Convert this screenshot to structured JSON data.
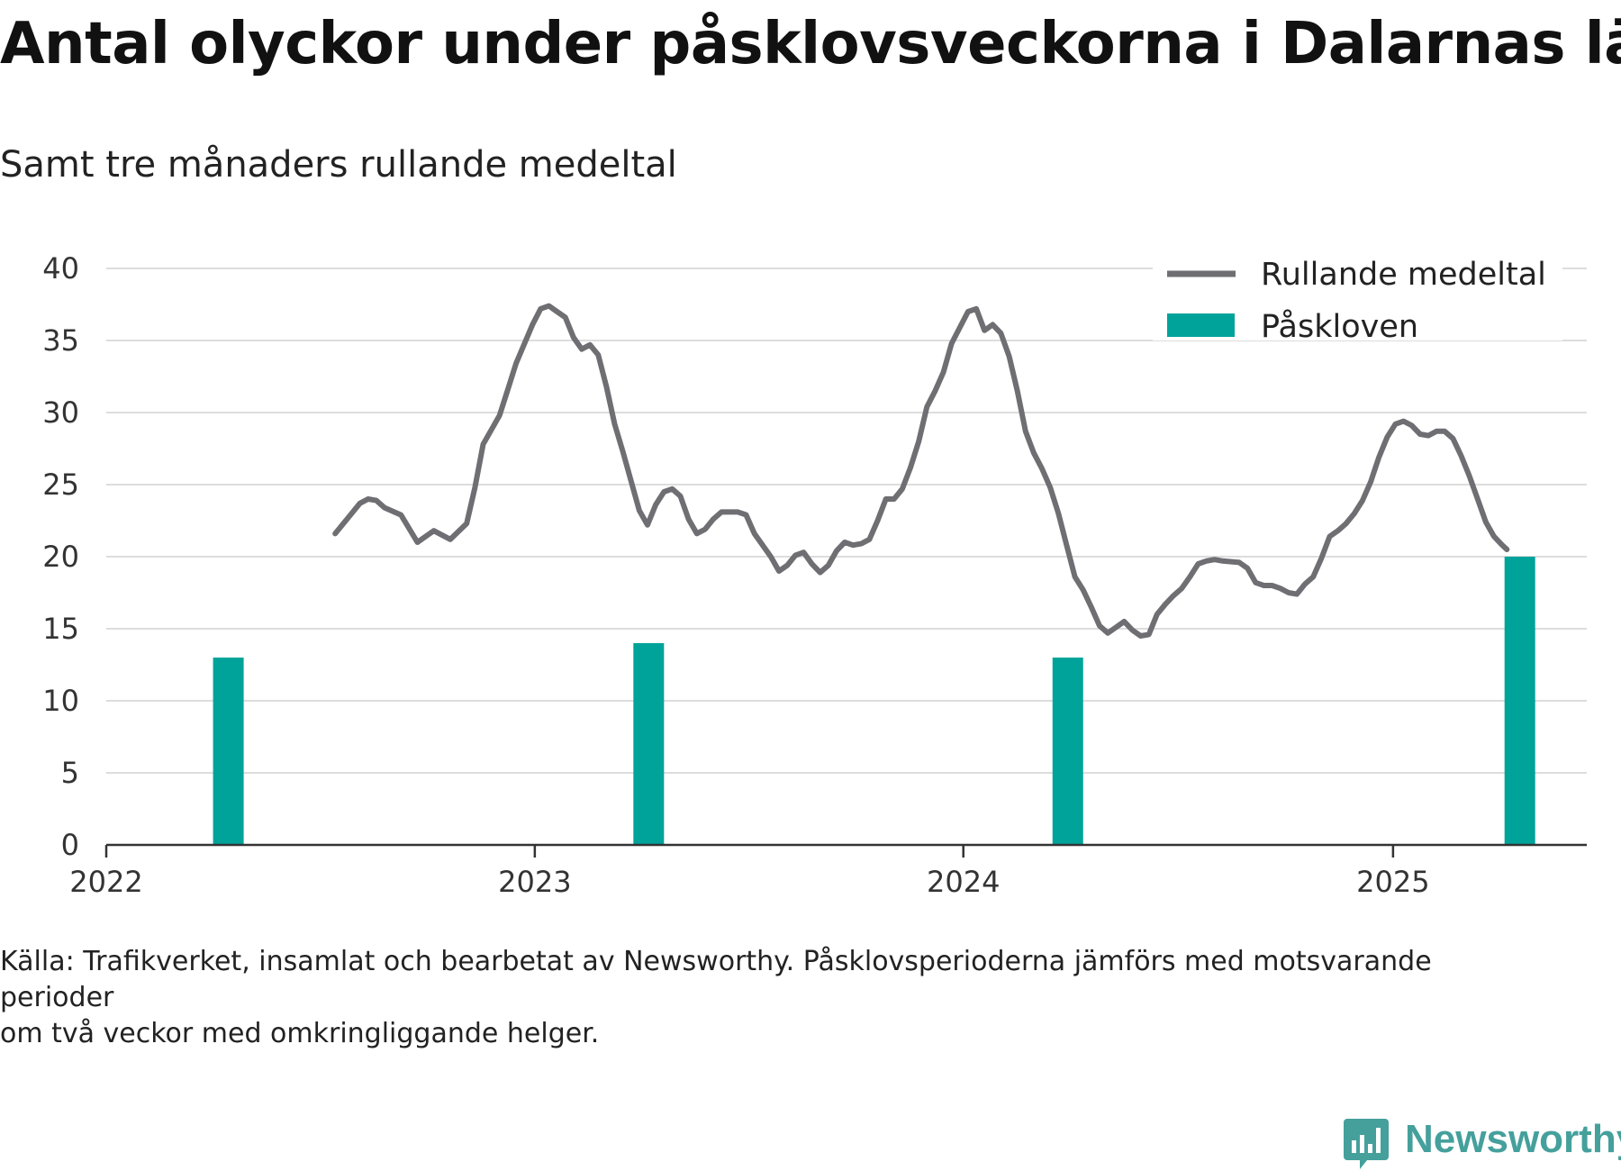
{
  "chart_data": {
    "type": "line+bar",
    "title": "Antal olyckor under påsklovsveckorna i Dalarnas län",
    "subtitle": "Samt tre månaders rullande medeltal",
    "xlabel": "",
    "ylabel": "",
    "x_range": [
      "2022-01-01",
      "2025-06-15"
    ],
    "ylim": [
      0,
      40
    ],
    "y_ticks": [
      0,
      5,
      10,
      15,
      20,
      25,
      30,
      35,
      40
    ],
    "x_ticks": [
      {
        "date": "2022-01-01",
        "label": "2022"
      },
      {
        "date": "2023-01-01",
        "label": "2023"
      },
      {
        "date": "2024-01-01",
        "label": "2024"
      },
      {
        "date": "2025-01-01",
        "label": "2025"
      }
    ],
    "grid": "horizontal",
    "legend_position": "top-right",
    "colors": {
      "line": "#6e6e73",
      "bars": "#00a39a",
      "grid": "#dddddd",
      "axis": "#333333"
    },
    "series": [
      {
        "name": "Rullande medeltal",
        "type": "line",
        "points": [
          [
            "2022-07-15",
            21.6
          ],
          [
            "2022-07-29",
            23.0
          ],
          [
            "2022-08-05",
            23.7
          ],
          [
            "2022-08-12",
            24.0
          ],
          [
            "2022-08-19",
            23.9
          ],
          [
            "2022-08-26",
            23.4
          ],
          [
            "2022-09-09",
            22.9
          ],
          [
            "2022-09-23",
            21.0
          ],
          [
            "2022-10-07",
            21.8
          ],
          [
            "2022-10-21",
            21.2
          ],
          [
            "2022-11-04",
            22.3
          ],
          [
            "2022-11-11",
            24.8
          ],
          [
            "2022-11-18",
            27.8
          ],
          [
            "2022-12-02",
            29.8
          ],
          [
            "2022-12-09",
            31.6
          ],
          [
            "2022-12-16",
            33.4
          ],
          [
            "2022-12-30",
            36.1
          ],
          [
            "2023-01-06",
            37.2
          ],
          [
            "2023-01-13",
            37.4
          ],
          [
            "2023-01-20",
            37.0
          ],
          [
            "2023-01-27",
            36.6
          ],
          [
            "2023-02-03",
            35.2
          ],
          [
            "2023-02-10",
            34.4
          ],
          [
            "2023-02-17",
            34.7
          ],
          [
            "2023-02-24",
            34.0
          ],
          [
            "2023-03-03",
            31.8
          ],
          [
            "2023-03-10",
            29.2
          ],
          [
            "2023-03-17",
            27.3
          ],
          [
            "2023-03-31",
            23.2
          ],
          [
            "2023-04-07",
            22.2
          ],
          [
            "2023-04-14",
            23.6
          ],
          [
            "2023-04-21",
            24.5
          ],
          [
            "2023-04-28",
            24.7
          ],
          [
            "2023-05-05",
            24.2
          ],
          [
            "2023-05-12",
            22.6
          ],
          [
            "2023-05-19",
            21.6
          ],
          [
            "2023-05-26",
            21.9
          ],
          [
            "2023-06-02",
            22.6
          ],
          [
            "2023-06-09",
            23.1
          ],
          [
            "2023-06-23",
            23.1
          ],
          [
            "2023-06-30",
            22.9
          ],
          [
            "2023-07-07",
            21.6
          ],
          [
            "2023-07-21",
            20.0
          ],
          [
            "2023-07-28",
            19.0
          ],
          [
            "2023-08-04",
            19.4
          ],
          [
            "2023-08-11",
            20.1
          ],
          [
            "2023-08-18",
            20.3
          ],
          [
            "2023-08-25",
            19.5
          ],
          [
            "2023-09-01",
            18.9
          ],
          [
            "2023-09-08",
            19.4
          ],
          [
            "2023-09-15",
            20.4
          ],
          [
            "2023-09-22",
            21.0
          ],
          [
            "2023-09-29",
            20.8
          ],
          [
            "2023-10-06",
            20.9
          ],
          [
            "2023-10-13",
            21.2
          ],
          [
            "2023-10-20",
            22.5
          ],
          [
            "2023-10-27",
            24.0
          ],
          [
            "2023-11-03",
            24.0
          ],
          [
            "2023-11-10",
            24.7
          ],
          [
            "2023-11-17",
            26.2
          ],
          [
            "2023-11-24",
            28.0
          ],
          [
            "2023-12-01",
            30.4
          ],
          [
            "2023-12-08",
            31.5
          ],
          [
            "2023-12-15",
            32.8
          ],
          [
            "2023-12-22",
            34.8
          ],
          [
            "2023-12-29",
            35.9
          ],
          [
            "2024-01-05",
            37.0
          ],
          [
            "2024-01-12",
            37.2
          ],
          [
            "2024-01-19",
            35.7
          ],
          [
            "2024-01-26",
            36.1
          ],
          [
            "2024-02-02",
            35.5
          ],
          [
            "2024-02-09",
            33.9
          ],
          [
            "2024-02-16",
            31.5
          ],
          [
            "2024-02-23",
            28.7
          ],
          [
            "2024-03-01",
            27.2
          ],
          [
            "2024-03-08",
            26.1
          ],
          [
            "2024-03-15",
            24.8
          ],
          [
            "2024-03-22",
            23.0
          ],
          [
            "2024-03-29",
            20.8
          ],
          [
            "2024-04-05",
            18.6
          ],
          [
            "2024-04-12",
            17.7
          ],
          [
            "2024-04-19",
            16.5
          ],
          [
            "2024-04-26",
            15.2
          ],
          [
            "2024-05-03",
            14.7
          ],
          [
            "2024-05-10",
            15.1
          ],
          [
            "2024-05-17",
            15.5
          ],
          [
            "2024-05-24",
            14.9
          ],
          [
            "2024-05-31",
            14.5
          ],
          [
            "2024-06-07",
            14.6
          ],
          [
            "2024-06-14",
            16.0
          ],
          [
            "2024-06-21",
            16.7
          ],
          [
            "2024-06-28",
            17.3
          ],
          [
            "2024-07-05",
            17.8
          ],
          [
            "2024-07-12",
            18.6
          ],
          [
            "2024-07-19",
            19.5
          ],
          [
            "2024-07-26",
            19.7
          ],
          [
            "2024-08-02",
            19.8
          ],
          [
            "2024-08-09",
            19.7
          ],
          [
            "2024-08-23",
            19.6
          ],
          [
            "2024-08-30",
            19.2
          ],
          [
            "2024-09-06",
            18.2
          ],
          [
            "2024-09-13",
            18.0
          ],
          [
            "2024-09-20",
            18.0
          ],
          [
            "2024-09-27",
            17.8
          ],
          [
            "2024-10-04",
            17.5
          ],
          [
            "2024-10-11",
            17.4
          ],
          [
            "2024-10-18",
            18.1
          ],
          [
            "2024-10-25",
            18.6
          ],
          [
            "2024-11-01",
            19.9
          ],
          [
            "2024-11-08",
            21.4
          ],
          [
            "2024-11-15",
            21.8
          ],
          [
            "2024-11-22",
            22.3
          ],
          [
            "2024-11-29",
            23.0
          ],
          [
            "2024-12-06",
            23.9
          ],
          [
            "2024-12-13",
            25.2
          ],
          [
            "2024-12-20",
            26.9
          ],
          [
            "2024-12-27",
            28.3
          ],
          [
            "2025-01-03",
            29.2
          ],
          [
            "2025-01-10",
            29.4
          ],
          [
            "2025-01-17",
            29.1
          ],
          [
            "2025-01-24",
            28.5
          ],
          [
            "2025-01-31",
            28.4
          ],
          [
            "2025-02-07",
            28.7
          ],
          [
            "2025-02-14",
            28.7
          ],
          [
            "2025-02-21",
            28.2
          ],
          [
            "2025-02-28",
            27.0
          ],
          [
            "2025-03-07",
            25.6
          ],
          [
            "2025-03-14",
            24.0
          ],
          [
            "2025-03-21",
            22.4
          ],
          [
            "2025-03-28",
            21.4
          ],
          [
            "2025-04-04",
            20.8
          ],
          [
            "2025-04-08",
            20.5
          ]
        ]
      },
      {
        "name": "Påskloven",
        "type": "bar",
        "points": [
          [
            "2022-04-15",
            13
          ],
          [
            "2023-04-08",
            14
          ],
          [
            "2024-03-30",
            13
          ],
          [
            "2025-04-19",
            20
          ]
        ]
      }
    ]
  },
  "source_lines": [
    "Källa: Trafikverket, insamlat och bearbetat av Newsworthy. Påsklovsperioderna jämförs med motsvarande perioder",
    "om två veckor med omkringliggande helger."
  ],
  "logo": {
    "text": "Newsworthy",
    "icon": "bar-chart-speech-bubble-icon"
  }
}
